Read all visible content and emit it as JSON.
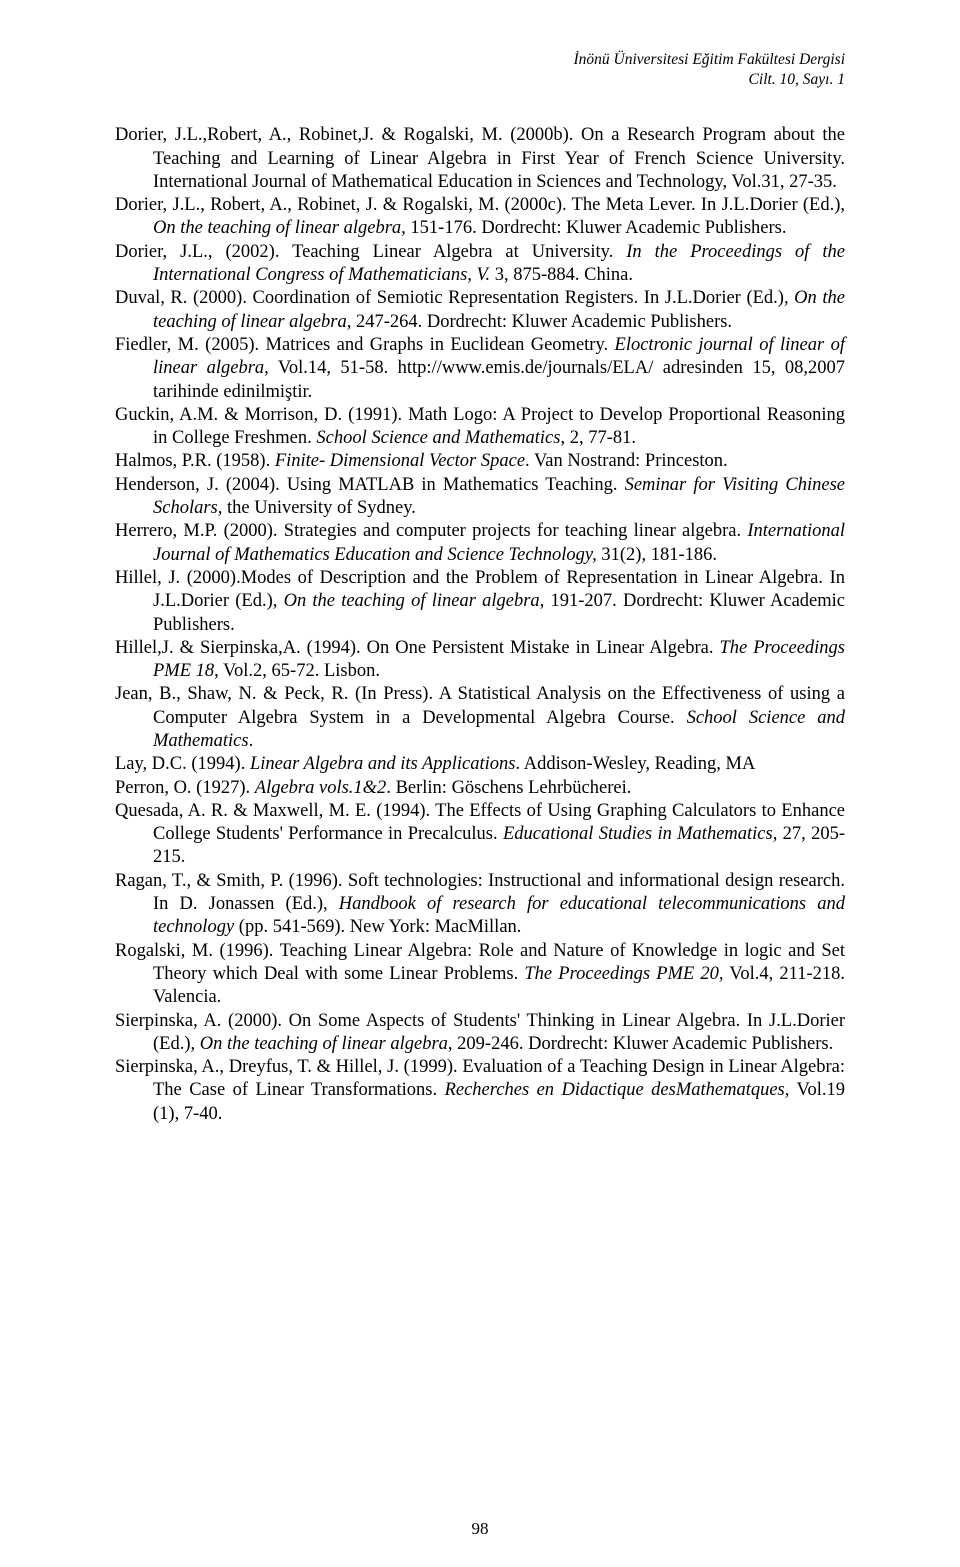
{
  "header": {
    "journal": "İnönü Üniversitesi Eğitim Fakültesi Dergisi",
    "issue": "Cilt. 10, Sayı. 1"
  },
  "page_number": "98",
  "references": [
    {
      "pre": "Dorier, J.L.,Robert, A., Robinet,J. & Rogalski, M. (2000b). On a Research Program about the Teaching and Learning of Linear Algebra in First Year of French Science University. International Journal of Mathematical Education in Sciences and Technology, Vol.31, 27-35."
    },
    {
      "pre": "Dorier, J.L., Robert, A., Robinet, J. & Rogalski, M. (2000c). The Meta Lever. In J.L.Dorier (Ed.), ",
      "ital1": "On the teaching of linear algebra,",
      "post": " 151-176. Dordrecht: Kluwer Academic Publishers."
    },
    {
      "pre": "Dorier, J.L., (2002). Teaching Linear Algebra at University. ",
      "ital1": "In the Proceedings of the International Congress of Mathematicians, V.",
      "post": " 3, 875-884. China."
    },
    {
      "pre": "Duval, R. (2000). Coordination of Semiotic Representation Registers. In J.L.Dorier (Ed.), ",
      "ital1": "On the teaching of linear algebra,",
      "post": " 247-264. Dordrecht: Kluwer Academic Publishers."
    },
    {
      "pre": "Fiedler, M. (2005). Matrices and Graphs in Euclidean Geometry. ",
      "ital1": "Eloctronic journal of linear of linear algebra",
      "post": ", Vol.14, 51-58. http://www.emis.de/journals/ELA/ adresinden 15, 08,2007 tarihinde edinilmiştir."
    },
    {
      "pre": "Guckin, A.M. & Morrison, D. (1991). Math Logo: A Project to Develop Proportional Reasoning in College Freshmen. ",
      "ital1": "School Science and Mathematics",
      "post": ", 2, 77-81."
    },
    {
      "pre": "Halmos, P.R. (1958). ",
      "ital1": "Finite- Dimensional Vector Space",
      "post": ". Van Nostrand: Princeston."
    },
    {
      "pre": "Henderson, J.  (2004). Using MATLAB in Mathematics Teaching. ",
      "ital1": "Seminar for Visiting Chinese Scholars,",
      "post": " the University of Sydney."
    },
    {
      "pre": "Herrero, M.P. (2000). Strategies and computer projects for teaching linear algebra. ",
      "ital1": "International Journal of Mathematics Education and Science Technology,",
      "post": " 31(2), 181-186."
    },
    {
      "pre": "Hillel, J. (2000).Modes of Description and the Problem of Representation in Linear Algebra. In J.L.Dorier (Ed.), ",
      "ital1": "On the teaching of linear algebra,",
      "post": " 191-207. Dordrecht: Kluwer Academic Publishers."
    },
    {
      "pre": "Hillel,J. & Sierpinska,A. (1994). On One Persistent Mistake in Linear Algebra. ",
      "ital1": "The Proceedings PME 18",
      "post": ", Vol.2, 65-72. Lisbon."
    },
    {
      "pre": "Jean, B., Shaw, N. & Peck, R. (In Press). A Statistical Analysis on the Effectiveness of using a Computer Algebra System in a Developmental Algebra Course. ",
      "ital1": "School Science and Mathematics",
      "post": "."
    },
    {
      "pre": "Lay, D.C. (1994). ",
      "ital1": "Linear Algebra and its Applications",
      "post": ". Addison-Wesley, Reading, MA"
    },
    {
      "pre": "Perron, O. (1927). ",
      "ital1": "Algebra vols.1&2",
      "post": ".  Berlin: Göschens Lehrbücherei."
    },
    {
      "pre": "Quesada, A. R. & Maxwell, M. E. (1994). The Effects of Using Graphing Calculators to Enhance College Students' Performance in Precalculus. ",
      "ital1": "Educational Studies in Mathematics,",
      "post": " 27, 205-215."
    },
    {
      "pre": "Ragan, T., & Smith, P. (1996). Soft technologies: Instructional and informational design research. In D. Jonassen (Ed.), ",
      "ital1": "Handbook of research for educational telecommunications and technology",
      "post": " (pp. 541-569). New York: MacMillan."
    },
    {
      "pre": "Rogalski, M. (1996). Teaching Linear Algebra: Role and Nature of Knowledge in logic and Set Theory which Deal with some Linear Problems. ",
      "ital1": "The Proceedings PME 20,",
      "post": " Vol.4, 211-218. Valencia."
    },
    {
      "pre": "Sierpinska, A. (2000). On Some Aspects of Students' Thinking in Linear Algebra. In J.L.Dorier (Ed.), ",
      "ital1": "On the teaching of linear algebra",
      "post": ", 209-246. Dordrecht:  Kluwer Academic Publishers."
    },
    {
      "pre": "Sierpinska, A., Dreyfus, T. & Hillel, J. (1999). Evaluation of a Teaching Design in Linear Algebra: The Case of Linear Transformations. ",
      "ital1": "Recherches en Didactique desMathematques,",
      "post": " Vol.19 (1), 7-40."
    }
  ]
}
